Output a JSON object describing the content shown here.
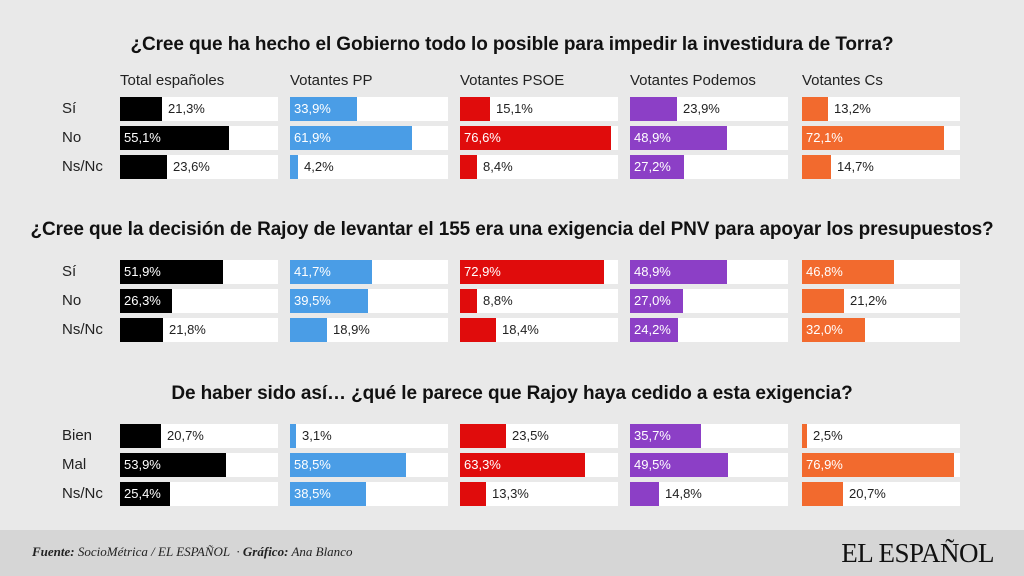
{
  "columns": [
    "Total españoles",
    "Votantes PP",
    "Votantes PSOE",
    "Votantes Podemos",
    "Votantes Cs"
  ],
  "colors": [
    "#000000",
    "#4a9de6",
    "#e00c0c",
    "#8c3fc6",
    "#f26a2e"
  ],
  "chart_data": [
    {
      "type": "bar",
      "title": "¿Cree que ha hecho el Gobierno todo lo posible para impedir la investidura de Torra?",
      "categories": [
        "Sí",
        "No",
        "Ns/Nc"
      ],
      "series": [
        {
          "name": "Total españoles",
          "values": [
            21.3,
            55.1,
            23.6
          ],
          "labels": [
            "21,3%",
            "55,1%",
            "23,6%"
          ]
        },
        {
          "name": "Votantes PP",
          "values": [
            33.9,
            61.9,
            4.2
          ],
          "labels": [
            "33,9%",
            "61,9%",
            "4,2%"
          ]
        },
        {
          "name": "Votantes PSOE",
          "values": [
            15.1,
            76.6,
            8.4
          ],
          "labels": [
            "15,1%",
            "76,6%",
            "8,4%"
          ]
        },
        {
          "name": "Votantes Podemos",
          "values": [
            23.9,
            48.9,
            27.2
          ],
          "labels": [
            "23,9%",
            "48,9%",
            "27,2%"
          ]
        },
        {
          "name": "Votantes Cs",
          "values": [
            13.2,
            72.1,
            14.7
          ],
          "labels": [
            "13,2%",
            "72,1%",
            "14,7%"
          ]
        }
      ],
      "xlim": [
        0,
        80
      ]
    },
    {
      "type": "bar",
      "title": "¿Cree que la decisión de Rajoy de levantar el 155 era una exigencia del PNV para apoyar los presupuestos?",
      "categories": [
        "Sí",
        "No",
        "Ns/Nc"
      ],
      "series": [
        {
          "name": "Total españoles",
          "values": [
            51.9,
            26.3,
            21.8
          ],
          "labels": [
            "51,9%",
            "26,3%",
            "21,8%"
          ]
        },
        {
          "name": "Votantes PP",
          "values": [
            41.7,
            39.5,
            18.9
          ],
          "labels": [
            "41,7%",
            "39,5%",
            "18,9%"
          ]
        },
        {
          "name": "Votantes PSOE",
          "values": [
            72.9,
            8.8,
            18.4
          ],
          "labels": [
            "72,9%",
            "8,8%",
            "18,4%"
          ]
        },
        {
          "name": "Votantes Podemos",
          "values": [
            48.9,
            27.0,
            24.2
          ],
          "labels": [
            "48,9%",
            "27,0%",
            "24,2%"
          ]
        },
        {
          "name": "Votantes Cs",
          "values": [
            46.8,
            21.2,
            32.0
          ],
          "labels": [
            "46,8%",
            "21,2%",
            "32,0%"
          ]
        }
      ],
      "xlim": [
        0,
        80
      ]
    },
    {
      "type": "bar",
      "title": "De haber sido así… ¿qué le parece que Rajoy haya cedido a esta exigencia?",
      "categories": [
        "Bien",
        "Mal",
        "Ns/Nc"
      ],
      "series": [
        {
          "name": "Total españoles",
          "values": [
            20.7,
            53.9,
            25.4
          ],
          "labels": [
            "20,7%",
            "53,9%",
            "25,4%"
          ]
        },
        {
          "name": "Votantes PP",
          "values": [
            3.1,
            58.5,
            38.5
          ],
          "labels": [
            "3,1%",
            "58,5%",
            "38,5%"
          ]
        },
        {
          "name": "Votantes PSOE",
          "values": [
            23.5,
            63.3,
            13.3
          ],
          "labels": [
            "23,5%",
            "63,3%",
            "13,3%"
          ]
        },
        {
          "name": "Votantes Podemos",
          "values": [
            35.7,
            49.5,
            14.8
          ],
          "labels": [
            "35,7%",
            "49,5%",
            "14,8%"
          ]
        },
        {
          "name": "Votantes Cs",
          "values": [
            2.5,
            76.9,
            20.7
          ],
          "labels": [
            "2,5%",
            "76,9%",
            "20,7%"
          ]
        }
      ],
      "xlim": [
        0,
        80
      ]
    }
  ],
  "footer": {
    "source_label": "Fuente:",
    "source_value": "SocioMétrica / EL ESPAÑOL",
    "separator": "·",
    "graphic_label": "Gráfico:",
    "graphic_value": "Ana Blanco",
    "logo": "EL ESPAÑOL"
  }
}
